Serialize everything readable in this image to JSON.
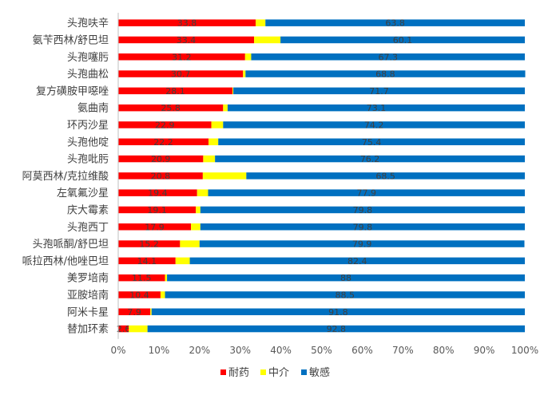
{
  "chart_data": {
    "type": "bar",
    "orientation": "horizontal",
    "stacked": "percent",
    "categories": [
      "头孢呋辛",
      "氨苄西林/舒巴坦",
      "头孢噻肟",
      "头孢曲松",
      "复方磺胺甲噁唑",
      "氨曲南",
      "环丙沙星",
      "头孢他啶",
      "头孢吡肟",
      "阿莫西林/克拉维酸",
      "左氧氟沙星",
      "庆大霉素",
      "头孢西丁",
      "头孢哌酮/舒巴坦",
      "哌拉西林/他唑巴坦",
      "美罗培南",
      "亚胺培南",
      "阿米卡星",
      "替加环素"
    ],
    "series": [
      {
        "name": "耐药",
        "color": "#ff0000",
        "values": [
          33.8,
          33.4,
          31.2,
          30.7,
          28.1,
          25.8,
          22.9,
          22.2,
          20.9,
          20.8,
          19.4,
          19.1,
          17.9,
          15.2,
          14.1,
          11.5,
          10.4,
          7.9,
          2.6
        ],
        "labels": [
          "33.8",
          "33.4",
          "31.2",
          "30.7",
          "28.1",
          "25.8",
          "22.9",
          "22.2",
          "20.9",
          "20.8",
          "19.4",
          "19.1",
          "17.9",
          "15.2",
          "14.1",
          "11.5",
          "10.4",
          "7.9",
          "2.6"
        ]
      },
      {
        "name": "中介",
        "color": "#ffff00",
        "values": [
          2.4,
          6.5,
          1.5,
          0.6,
          0.2,
          1.1,
          2.9,
          2.4,
          2.9,
          10.7,
          2.7,
          1.1,
          2.3,
          4.8,
          3.5,
          0.5,
          1.1,
          0.3,
          4.6
        ],
        "labels": []
      },
      {
        "name": "敏感",
        "color": "#0070c0",
        "values": [
          63.8,
          60.1,
          67.3,
          68.8,
          71.7,
          73.1,
          74.2,
          75.4,
          76.2,
          68.5,
          77.9,
          79.8,
          79.8,
          79.9,
          82.4,
          88.0,
          88.5,
          91.8,
          92.8
        ],
        "labels": [
          "63.8",
          "60.1",
          "67.3",
          "68.8",
          "71.7",
          "73.1",
          "74.2",
          "75.4",
          "76.2",
          "68.5",
          "77.9",
          "79.8",
          "79.8",
          "79.9",
          "82.4",
          "88",
          "88.5",
          "91.8",
          "92.8"
        ]
      }
    ],
    "x_ticks": [
      "0%",
      "10%",
      "20%",
      "30%",
      "40%",
      "50%",
      "60%",
      "70%",
      "80%",
      "90%",
      "100%"
    ],
    "xlim": [
      0,
      100
    ],
    "grid": false,
    "legend_position": "bottom",
    "title": "",
    "xlabel": "",
    "ylabel": ""
  }
}
